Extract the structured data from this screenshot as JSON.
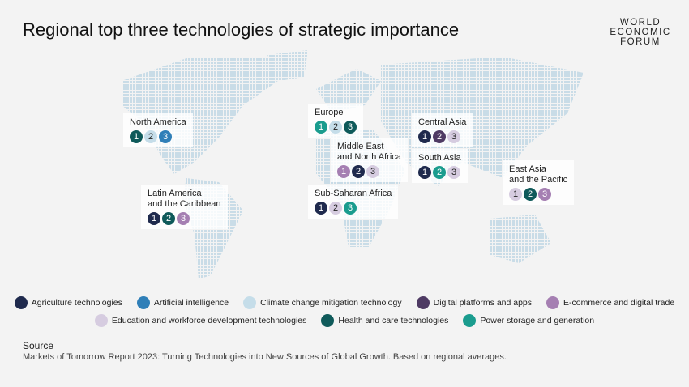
{
  "title": "Regional top three technologies of strategic importance",
  "logo": {
    "lines": [
      "WORLD",
      "ECONOMIC",
      "FORUM"
    ]
  },
  "regions": [
    {
      "lines": [
        "North America"
      ],
      "ranks": [
        {
          "label": "1",
          "color": "#0f5a5a"
        },
        {
          "label": "2",
          "color": "#c5dde9"
        },
        {
          "label": "3",
          "color": "#2f7fb8"
        }
      ]
    },
    {
      "lines": [
        "Europe"
      ],
      "ranks": [
        {
          "label": "1",
          "color": "#1a9c8e"
        },
        {
          "label": "2",
          "color": "#c5dde9"
        },
        {
          "label": "3",
          "color": "#0f5a5a"
        }
      ]
    },
    {
      "lines": [
        "Central Asia"
      ],
      "ranks": [
        {
          "label": "1",
          "color": "#1f2a4d"
        },
        {
          "label": "2",
          "color": "#4e3a63"
        },
        {
          "label": "3",
          "color": "#d6cce0"
        }
      ]
    },
    {
      "lines": [
        "Middle East",
        "and North Africa"
      ],
      "ranks": [
        {
          "label": "1",
          "color": "#a57fb2"
        },
        {
          "label": "2",
          "color": "#1f2a4d"
        },
        {
          "label": "3",
          "color": "#d6cce0"
        }
      ]
    },
    {
      "lines": [
        "South Asia"
      ],
      "ranks": [
        {
          "label": "1",
          "color": "#1f2a4d"
        },
        {
          "label": "2",
          "color": "#1a9c8e"
        },
        {
          "label": "3",
          "color": "#d6cce0"
        }
      ]
    },
    {
      "lines": [
        "East Asia",
        "and the Pacific"
      ],
      "ranks": [
        {
          "label": "1",
          "color": "#d6cce0"
        },
        {
          "label": "2",
          "color": "#0f5a5a"
        },
        {
          "label": "3",
          "color": "#a57fb2"
        }
      ]
    },
    {
      "lines": [
        "Latin America",
        "and the Caribbean"
      ],
      "ranks": [
        {
          "label": "1",
          "color": "#1f2a4d"
        },
        {
          "label": "2",
          "color": "#0f5a5a"
        },
        {
          "label": "3",
          "color": "#a57fb2"
        }
      ]
    },
    {
      "lines": [
        "Sub-Saharan Africa"
      ],
      "ranks": [
        {
          "label": "1",
          "color": "#1f2a4d"
        },
        {
          "label": "2",
          "color": "#d6cce0"
        },
        {
          "label": "3",
          "color": "#1a9c8e"
        }
      ]
    }
  ],
  "legend": [
    [
      {
        "name": "Agriculture technologies",
        "color": "#1f2a4d"
      },
      {
        "name": "Artificial intelligence",
        "color": "#2f7fb8"
      },
      {
        "name": "Climate change mitigation technology",
        "color": "#c5dde9"
      },
      {
        "name": "Digital platforms and apps",
        "color": "#4e3a63"
      },
      {
        "name": "E-commerce and digital trade",
        "color": "#a57fb2"
      }
    ],
    [
      {
        "name": "Education and workforce development technologies",
        "color": "#d6cce0"
      },
      {
        "name": "Health and care technologies",
        "color": "#0f5a5a"
      },
      {
        "name": "Power storage and generation",
        "color": "#1a9c8e"
      }
    ]
  ],
  "source": {
    "heading": "Source",
    "text": "Markets of Tomorrow Report 2023: Turning Technologies into New Sources of Global Growth. Based on regional averages."
  }
}
